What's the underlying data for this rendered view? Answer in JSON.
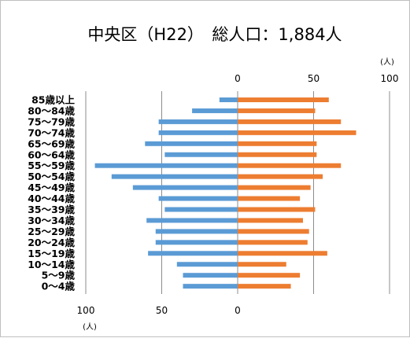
{
  "chart_data": {
    "type": "bar",
    "title": "中央区（H22）　総人口：1,884人",
    "unit": "(人)",
    "categories": [
      "85歳以上",
      "80～84歳",
      "75～79歳",
      "70～74歳",
      "65～69歳",
      "60～64歳",
      "55～59歳",
      "50～54歳",
      "45～49歳",
      "40～44歳",
      "35～39歳",
      "30～34歳",
      "25～29歳",
      "20～24歳",
      "15～19歳",
      "10～14歳",
      "5～9歳",
      "0～4歳"
    ],
    "top_axis": {
      "ticks": [
        "0",
        "50",
        "100"
      ],
      "tick_values": [
        0,
        50,
        100
      ],
      "range": [
        0,
        100
      ]
    },
    "bottom_axis": {
      "ticks": [
        "100",
        "50",
        "0"
      ],
      "tick_values": [
        100,
        50,
        0
      ],
      "range": [
        100,
        0
      ]
    },
    "series": [
      {
        "color": "#5b9bd5",
        "side": "left",
        "values": [
          12,
          30,
          52,
          52,
          61,
          48,
          94,
          83,
          69,
          52,
          48,
          60,
          54,
          54,
          59,
          40,
          36,
          36
        ]
      },
      {
        "color": "#ed7d31",
        "side": "right",
        "values": [
          60,
          51,
          68,
          78,
          52,
          52,
          68,
          56,
          48,
          41,
          51,
          43,
          47,
          46,
          59,
          32,
          41,
          35
        ]
      }
    ],
    "grid": true,
    "legend": "none"
  }
}
